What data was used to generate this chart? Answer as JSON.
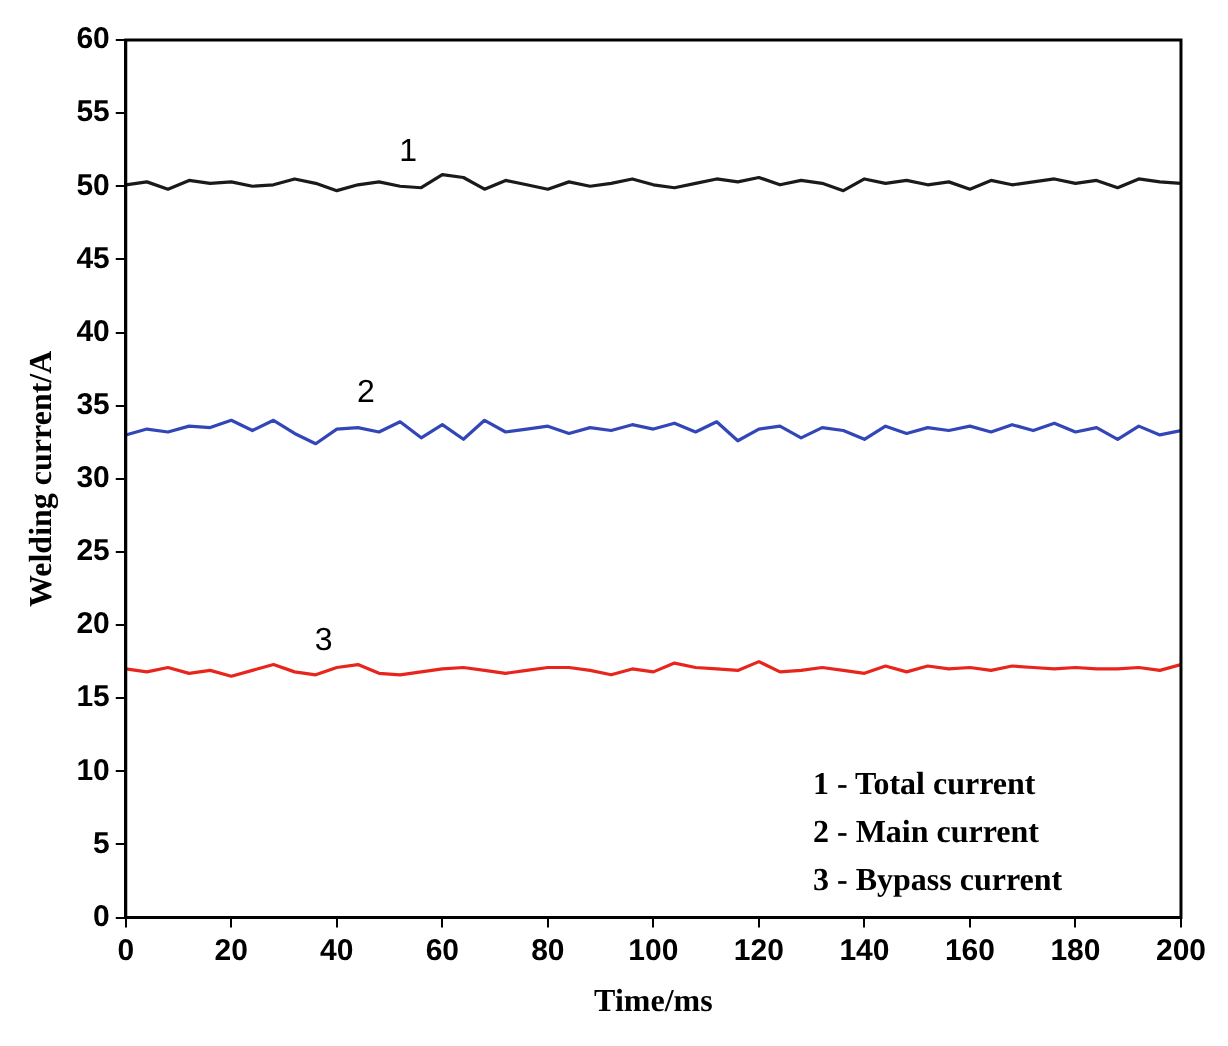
{
  "chart_data": {
    "type": "line",
    "xlabel": "Time/ms",
    "ylabel": "Welding current/A",
    "x": [
      0,
      4,
      8,
      12,
      16,
      20,
      24,
      28,
      32,
      36,
      40,
      44,
      48,
      52,
      56,
      60,
      64,
      68,
      72,
      76,
      80,
      84,
      88,
      92,
      96,
      100,
      104,
      108,
      112,
      116,
      120,
      124,
      128,
      132,
      136,
      140,
      144,
      148,
      152,
      156,
      160,
      164,
      168,
      172,
      176,
      180,
      184,
      188,
      192,
      196,
      200
    ],
    "series": [
      {
        "name": "1",
        "color": "#1a1a1a",
        "values": [
          50.1,
          50.3,
          49.8,
          50.4,
          50.2,
          50.3,
          50.0,
          50.1,
          50.5,
          50.2,
          49.7,
          50.1,
          50.3,
          50.0,
          49.9,
          50.8,
          50.6,
          49.8,
          50.4,
          50.1,
          49.8,
          50.3,
          50.0,
          50.2,
          50.5,
          50.1,
          49.9,
          50.2,
          50.5,
          50.3,
          50.6,
          50.1,
          50.4,
          50.2,
          49.7,
          50.5,
          50.2,
          50.4,
          50.1,
          50.3,
          49.8,
          50.4,
          50.1,
          50.3,
          50.5,
          50.2,
          50.4,
          49.9,
          50.5,
          50.3,
          50.2
        ]
      },
      {
        "name": "2",
        "color": "#3346b8",
        "values": [
          33.0,
          33.4,
          33.2,
          33.6,
          33.5,
          34.0,
          33.3,
          34.0,
          33.1,
          32.4,
          33.4,
          33.5,
          33.2,
          33.9,
          32.8,
          33.7,
          32.7,
          34.0,
          33.2,
          33.4,
          33.6,
          33.1,
          33.5,
          33.3,
          33.7,
          33.4,
          33.8,
          33.2,
          33.9,
          32.6,
          33.4,
          33.6,
          32.8,
          33.5,
          33.3,
          32.7,
          33.6,
          33.1,
          33.5,
          33.3,
          33.6,
          33.2,
          33.7,
          33.3,
          33.8,
          33.2,
          33.5,
          32.7,
          33.6,
          33.0,
          33.3
        ]
      },
      {
        "name": "3",
        "color": "#e8251c",
        "values": [
          17.0,
          16.8,
          17.1,
          16.7,
          16.9,
          16.5,
          16.9,
          17.3,
          16.8,
          16.6,
          17.1,
          17.3,
          16.7,
          16.6,
          16.8,
          17.0,
          17.1,
          16.9,
          16.7,
          16.9,
          17.1,
          17.1,
          16.9,
          16.6,
          17.0,
          16.8,
          17.4,
          17.1,
          17.0,
          16.9,
          17.5,
          16.8,
          16.9,
          17.1,
          16.9,
          16.7,
          17.2,
          16.8,
          17.2,
          17.0,
          17.1,
          16.9,
          17.2,
          17.1,
          17.0,
          17.1,
          17.0,
          17.0,
          17.1,
          16.9,
          17.3
        ]
      }
    ],
    "xlim": [
      0,
      200
    ],
    "xticks": [
      0,
      20,
      40,
      60,
      80,
      100,
      120,
      140,
      160,
      180,
      200
    ],
    "ylim": [
      0,
      60
    ],
    "yticks": [
      0,
      5,
      10,
      15,
      20,
      25,
      30,
      35,
      40,
      45,
      50,
      55,
      60
    ],
    "annotations": [
      "1 - Total current",
      "2 - Main current",
      "3 - Bypass current"
    ],
    "legend": false,
    "marker": "none",
    "line_style": "solid"
  }
}
